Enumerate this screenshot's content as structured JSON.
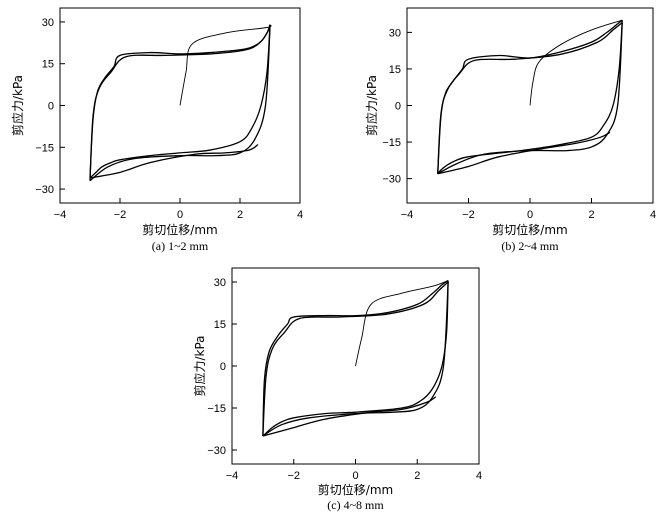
{
  "chart_data": [
    {
      "type": "line",
      "caption": "(a) 1~2 mm",
      "xlabel": "剪切位移/mm",
      "ylabel": "剪应力/kPa",
      "xlim": [
        -4,
        4
      ],
      "ylim": [
        -35,
        35
      ],
      "xticks": [
        "−4",
        "−2",
        "0",
        "2",
        "4"
      ],
      "yticks": [
        "−30",
        "−15",
        "0",
        "15",
        "30"
      ],
      "grid": false,
      "series": [
        {
          "x": [
            0,
            0.2,
            0.4,
            1.5,
            2.9,
            3.0
          ],
          "y": [
            0,
            12,
            22,
            26,
            28,
            29
          ]
        },
        {
          "x": [
            3.0,
            2.9,
            2.7,
            2.4,
            2.0,
            1.0,
            0,
            -1.0,
            -2.0,
            -2.3,
            -2.6,
            -2.8,
            -2.95,
            -3.0
          ],
          "y": [
            29,
            12,
            0,
            -8,
            -13,
            -16,
            -17,
            -18,
            -19.5,
            -20.5,
            -22,
            -24,
            -25.5,
            -26
          ]
        },
        {
          "x": [
            -3.0,
            -2.9,
            -2.75,
            -2.5,
            -2.2,
            -2.0,
            -1.0,
            0,
            1.0,
            2.0,
            2.4,
            2.7,
            2.9,
            3.0
          ],
          "y": [
            -26,
            -5,
            5,
            10,
            14,
            18,
            19,
            18.5,
            19,
            20,
            21,
            23,
            26,
            29
          ]
        },
        {
          "x": [
            -3.0,
            -2.0,
            -1.0,
            0.5,
            1.5,
            2.3,
            2.6
          ],
          "y": [
            -26,
            -24,
            -20.5,
            -17.5,
            -17,
            -16,
            -14
          ]
        },
        {
          "x": [
            -3.0,
            -2.4,
            -1.5,
            0,
            1.2,
            2.0,
            2.5,
            2.85,
            3.0
          ],
          "y": [
            -27,
            -22,
            -19,
            -18,
            -18,
            -17,
            -12,
            0,
            28
          ]
        },
        {
          "x": [
            -3.0,
            -2.9,
            -2.7,
            -2.3,
            -1.8,
            -0.5,
            1.0,
            2.2,
            2.7,
            3.0
          ],
          "y": [
            -27,
            -4,
            6,
            12,
            17.5,
            18,
            18.5,
            20,
            23,
            28
          ]
        }
      ]
    },
    {
      "type": "line",
      "caption": "(b) 2~4 mm",
      "xlabel": "剪切位移/mm",
      "ylabel": "剪应力/kPa",
      "xlim": [
        -4,
        4
      ],
      "ylim": [
        -40,
        40
      ],
      "xticks": [
        "−4",
        "−2",
        "0",
        "2",
        "4"
      ],
      "yticks": [
        "−30",
        "−15",
        "0",
        "15",
        "30"
      ],
      "grid": false,
      "series": [
        {
          "x": [
            0,
            0.1,
            0.3,
            1.0,
            2.0,
            3.0
          ],
          "y": [
            0,
            10,
            18,
            25,
            31,
            35
          ]
        },
        {
          "x": [
            3.0,
            2.9,
            2.7,
            2.4,
            2.0,
            1.0,
            0,
            -1.0,
            -2.0,
            -2.4,
            -2.7,
            -2.9,
            -3.0
          ],
          "y": [
            35,
            15,
            0,
            -8,
            -13,
            -16,
            -18,
            -19.5,
            -21,
            -22.5,
            -24.5,
            -26.5,
            -28
          ]
        },
        {
          "x": [
            -3.0,
            -2.9,
            -2.75,
            -2.5,
            -2.2,
            -2.0,
            -1.0,
            0,
            1.0,
            2.0,
            2.5,
            2.8,
            3.0
          ],
          "y": [
            -28,
            -5,
            5,
            10,
            15,
            19,
            20.5,
            19.5,
            22,
            26,
            30,
            33,
            35
          ]
        },
        {
          "x": [
            -3.0,
            -2.0,
            -1.0,
            0.5,
            1.5,
            2.3,
            2.6
          ],
          "y": [
            -28,
            -25,
            -21,
            -17.5,
            -15.5,
            -13,
            -11
          ]
        },
        {
          "x": [
            -3.0,
            -2.4,
            -1.5,
            0,
            1.2,
            2.0,
            2.5,
            2.85,
            3.0
          ],
          "y": [
            -28,
            -24,
            -20,
            -18.5,
            -18.5,
            -17,
            -12,
            0,
            34
          ]
        },
        {
          "x": [
            -3.0,
            -2.9,
            -2.7,
            -2.3,
            -1.8,
            -0.5,
            1.0,
            2.2,
            2.7,
            3.0
          ],
          "y": [
            -28,
            -4,
            6,
            13,
            18.5,
            19,
            21,
            26,
            31,
            34
          ]
        }
      ]
    },
    {
      "type": "line",
      "caption": "(c) 4~8 mm",
      "xlabel": "剪切位移/mm",
      "ylabel": "剪应力/kPa",
      "xlim": [
        -4,
        4
      ],
      "ylim": [
        -35,
        35
      ],
      "xticks": [
        "−4",
        "−2",
        "0",
        "2",
        "4"
      ],
      "yticks": [
        "−30",
        "−15",
        "0",
        "15",
        "30"
      ],
      "grid": false,
      "series": [
        {
          "x": [
            0,
            0.2,
            0.5,
            1.5,
            2.5,
            3.0
          ],
          "y": [
            0,
            10,
            22,
            26,
            28.5,
            30.5
          ]
        },
        {
          "x": [
            3.0,
            2.95,
            2.8,
            2.5,
            2.1,
            1.5,
            0,
            -1.0,
            -2.0,
            -2.4,
            -2.7,
            -2.9,
            -3.0
          ],
          "y": [
            30.5,
            12,
            0,
            -8,
            -12.5,
            -15,
            -16.5,
            -17,
            -18.5,
            -20,
            -22,
            -24,
            -25
          ]
        },
        {
          "x": [
            -3.0,
            -2.95,
            -2.8,
            -2.5,
            -2.2,
            -2.0,
            -1.0,
            0,
            1.0,
            2.0,
            2.5,
            2.8,
            3.0
          ],
          "y": [
            -25,
            -5,
            5,
            11,
            15,
            17.5,
            18,
            18,
            19,
            22,
            26,
            29,
            30.5
          ]
        },
        {
          "x": [
            -3.0,
            -2.0,
            -1.0,
            0.5,
            1.5,
            2.3,
            2.6
          ],
          "y": [
            -25,
            -22,
            -19,
            -16.5,
            -15.5,
            -13,
            -11
          ]
        },
        {
          "x": [
            -3.0,
            -2.4,
            -1.5,
            0,
            1.2,
            2.0,
            2.5,
            2.85,
            3.0
          ],
          "y": [
            -25,
            -21,
            -18.5,
            -17,
            -16.5,
            -15.5,
            -11,
            0,
            30
          ]
        },
        {
          "x": [
            -3.0,
            -2.9,
            -2.7,
            -2.3,
            -1.8,
            -0.5,
            1.0,
            2.2,
            2.7,
            3.0
          ],
          "y": [
            -25,
            -4,
            6,
            12,
            17,
            17.5,
            18.5,
            22,
            27,
            30
          ]
        }
      ]
    }
  ]
}
